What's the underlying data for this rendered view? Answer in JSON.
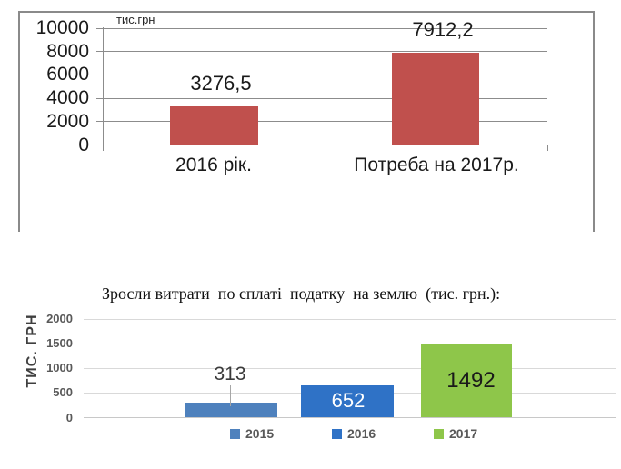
{
  "page": {
    "background": "#ffffff"
  },
  "chart_data": [
    {
      "id": "budget-need-chart",
      "type": "bar",
      "title": "",
      "axis_unit_label": "тис.грн",
      "categories": [
        "2016 рік.",
        "Потреба на 2017р."
      ],
      "values": [
        3276.5,
        7912.2
      ],
      "value_labels": [
        "3276,5",
        "7912,2"
      ],
      "bar_color": "#C0504D",
      "grid": true,
      "gridline_color": "#8C8C8C",
      "text_color": "#1A1A1A",
      "ylim": [
        0,
        10000
      ],
      "yticks": [
        10000,
        8000,
        6000,
        4000,
        2000,
        0
      ],
      "legend": "none"
    },
    {
      "id": "land-tax-chart",
      "type": "bar",
      "title": "Зросли витрати  по сплаті  податку  на землю  (тис. грн.):",
      "ylabel": "ТИС. ГРН",
      "categories": [
        "2015",
        "2016",
        "2017"
      ],
      "values": [
        313,
        652,
        1492
      ],
      "value_labels": [
        "313",
        "652",
        "1492"
      ],
      "series_colors": [
        "#4E81BD",
        "#2F72C6",
        "#8EC64A"
      ],
      "value_label_colors": [
        "#3B3B3B",
        "#FFFFFF",
        "#1A1A1A"
      ],
      "grid": true,
      "gridline_color": "#D9D9D9",
      "baseline_color": "#C8C8C8",
      "tick_text_color": "#595959",
      "ylim": [
        0,
        2000
      ],
      "yticks": [
        2000,
        1500,
        1000,
        500,
        0
      ],
      "legend": [
        "2015",
        "2016",
        "2017"
      ],
      "legend_position": "bottom"
    }
  ]
}
